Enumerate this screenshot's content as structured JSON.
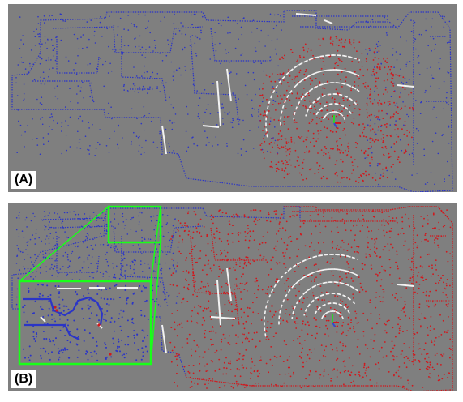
{
  "panels": [
    {
      "label": "(A)"
    },
    {
      "label": "(B)"
    }
  ],
  "colors": {
    "background": "#7f7f7f",
    "scan_blue": "#2b35c7",
    "scan_red": "#d2171c",
    "scan_white": "#f2f2f2",
    "highlight_green": "#19ff19",
    "axis_green": "#2fd22f",
    "axis_blue": "#2f4bd2"
  }
}
